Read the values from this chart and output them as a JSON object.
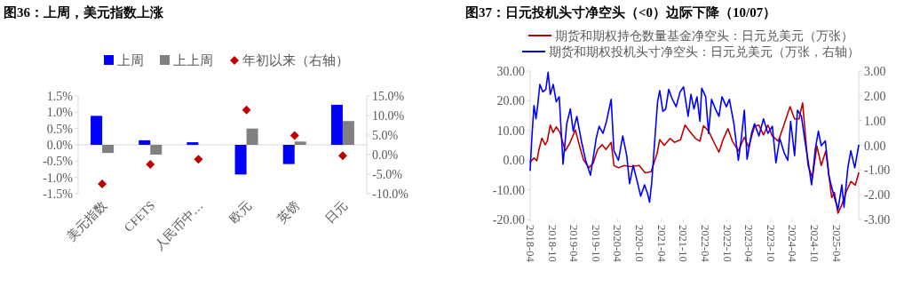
{
  "chart_data": [
    {
      "type": "bar",
      "title": "图36：上周，美元指数上涨",
      "categories": [
        "美元指数",
        "CFETS",
        "人民币中…",
        "欧元",
        "英镑",
        "日元"
      ],
      "series": [
        {
          "name": "上周",
          "color": "#0000ff",
          "values": [
            0.89,
            0.14,
            0.08,
            -0.91,
            -0.59,
            1.23
          ]
        },
        {
          "name": "上上周",
          "color": "#808080",
          "values": [
            -0.25,
            -0.3,
            null,
            0.5,
            0.1,
            0.73
          ]
        },
        {
          "name": "年初以来（右轴）",
          "type": "scatter",
          "axis": "y2",
          "marker": "diamond",
          "color": "#c00000",
          "values": [
            -7.5,
            -2.5,
            -1.2,
            11.4,
            4.9,
            -0.3
          ]
        }
      ],
      "ylim": [
        -1.5,
        1.5
      ],
      "yticks": [
        {
          "value": -1.5,
          "label": "-1.5%"
        },
        {
          "value": -1,
          "label": "-1.0%"
        },
        {
          "value": -0.5,
          "label": "-0.5%"
        },
        {
          "value": 0,
          "label": "0.0%"
        },
        {
          "value": 0.5,
          "label": "0.5%"
        },
        {
          "value": 1,
          "label": "1.0%"
        },
        {
          "value": 1.5,
          "label": "1.5%"
        }
      ],
      "y2lim": [
        -10,
        15
      ],
      "y2ticks": [
        {
          "value": -10,
          "label": "-10.0%"
        },
        {
          "value": -5,
          "label": "-5.0%"
        },
        {
          "value": 0,
          "label": "0.0%"
        },
        {
          "value": 5,
          "label": "5.0%"
        },
        {
          "value": 10,
          "label": "10.0%"
        },
        {
          "value": 15,
          "label": "15.0%"
        }
      ],
      "legend": "top"
    },
    {
      "type": "line",
      "title": "图37：日元投机头寸净空头（<0）边际下降（10/07）",
      "series": [
        {
          "name": "期货和期权持仓数量基金净空头：日元兑美元（万张）",
          "color": "#c00000",
          "x": [
            "2018-04-01",
            "2018-05-03",
            "2018-05-27",
            "2018-06-14",
            "2018-07-08",
            "2018-08-05",
            "2018-08-22",
            "2018-09-16",
            "2018-10-11",
            "2018-11-05",
            "2018-12-07",
            "2019-01-19",
            "2019-02-25",
            "2019-04-14",
            "2019-05-16",
            "2019-06-20",
            "2019-08-04",
            "2019-09-10",
            "2019-10-17",
            "2019-11-24",
            "2019-12-25",
            "2020-02-07",
            "2020-03-01",
            "2020-04-08",
            "2020-05-26",
            "2020-07-15",
            "2020-09-28",
            "2020-11-17",
            "2021-01-06",
            "2021-02-25",
            "2021-03-19",
            "2021-04-26",
            "2021-06-14",
            "2021-07-21",
            "2021-09-09",
            "2021-10-16",
            "2021-11-23",
            "2022-01-12",
            "2022-02-18",
            "2022-03-20",
            "2022-05-01",
            "2022-06-20",
            "2022-07-27",
            "2022-09-03",
            "2022-10-10",
            "2022-11-16",
            "2023-01-05",
            "2023-02-24",
            "2023-04-01",
            "2023-05-20",
            "2023-06-26",
            "2023-08-03",
            "2023-09-09",
            "2023-10-16",
            "2023-12-05",
            "2024-01-24",
            "2024-03-12",
            "2024-04-19",
            "2024-05-26",
            "2024-06-25",
            "2024-08-09",
            "2024-09-15",
            "2024-10-22",
            "2024-11-28",
            "2025-01-05",
            "2025-02-23",
            "2025-03-18",
            "2025-04-17",
            "2025-05-19",
            "2025-06-26",
            "2025-08-02",
            "2025-09-09",
            "2025-10-07"
          ],
          "values": [
            -0.6,
            0.7,
            -0.2,
            3.6,
            7.4,
            5.2,
            6.4,
            11.8,
            9.3,
            11.2,
            9.3,
            3.1,
            5.6,
            10.2,
            5.2,
            0.2,
            -2.6,
            -1,
            3.6,
            5.2,
            3.6,
            6,
            -1.8,
            -2.6,
            -1.8,
            -2.2,
            -1.8,
            -4.3,
            -3.9,
            2.3,
            6.9,
            5,
            7.3,
            6,
            6.9,
            11.8,
            9.8,
            7.3,
            6.4,
            11.6,
            9.8,
            5.6,
            2.7,
            7.3,
            10.6,
            6.4,
            3.1,
            7.7,
            4.4,
            11.4,
            11.8,
            8.5,
            11.8,
            8.1,
            6.4,
            12.2,
            18,
            13.9,
            13.9,
            19.3,
            -1.8,
            -6,
            4.8,
            -1.8,
            3.1,
            -12.6,
            -10.9,
            -17.9,
            -15,
            -10.5,
            -7.2,
            -8.4,
            -4.3
          ]
        },
        {
          "name": "期货和期权投机头寸净空头：日元兑美元（万张，右轴）",
          "color": "#0000ff",
          "axis": "y2",
          "x": [
            "2018-04-01",
            "2018-04-16",
            "2018-05-03",
            "2018-05-20",
            "2018-06-04",
            "2018-06-21",
            "2018-07-16",
            "2018-08-10",
            "2018-08-29",
            "2018-09-16",
            "2018-10-11",
            "2018-11-05",
            "2018-11-30",
            "2019-01-01",
            "2019-02-01",
            "2019-03-03",
            "2019-03-27",
            "2019-04-26",
            "2019-06-03",
            "2019-07-09",
            "2019-08-18",
            "2019-09-10",
            "2019-10-05",
            "2019-10-29",
            "2019-12-01",
            "2019-12-30",
            "2020-02-07",
            "2020-03-01",
            "2020-04-08",
            "2020-05-14",
            "2020-06-16",
            "2020-07-10",
            "2020-08-09",
            "2020-09-09",
            "2020-10-11",
            "2020-11-12",
            "2020-12-07",
            "2020-12-24",
            "2021-01-11",
            "2021-02-05",
            "2021-03-01",
            "2021-03-19",
            "2021-04-14",
            "2021-05-08",
            "2021-06-02",
            "2021-07-02",
            "2021-08-03",
            "2021-09-05",
            "2021-10-04",
            "2021-11-11",
            "2021-12-05",
            "2021-12-30",
            "2022-01-24",
            "2022-02-18",
            "2022-03-05",
            "2022-04-07",
            "2022-05-01",
            "2022-05-26",
            "2022-06-27",
            "2022-07-27",
            "2022-08-21",
            "2022-09-27",
            "2022-10-22",
            "2022-11-29",
            "2023-01-05",
            "2023-01-30",
            "2023-02-24",
            "2023-03-19",
            "2023-04-25",
            "2023-05-20",
            "2023-06-26",
            "2023-08-03",
            "2023-09-09",
            "2023-10-16",
            "2023-11-15",
            "2023-12-17",
            "2024-01-24",
            "2024-02-22",
            "2024-03-17",
            "2024-04-19",
            "2024-05-13",
            "2024-06-15",
            "2024-07-14",
            "2024-08-09",
            "2024-09-08",
            "2024-10-10",
            "2024-11-04",
            "2024-11-28",
            "2025-01-01",
            "2025-01-30",
            "2025-02-23",
            "2025-03-23",
            "2025-04-17",
            "2025-05-19",
            "2025-06-06",
            "2025-07-08",
            "2025-08-02",
            "2025-09-04",
            "2025-10-07"
          ],
          "values": [
            -1.01,
            0.38,
            1.61,
            1.07,
            1.66,
            2.46,
            2.16,
            2.26,
            2.95,
            2.06,
            2.46,
            1.76,
            1.96,
            -0.76,
            0.87,
            1.47,
            0.57,
            1.17,
            0.18,
            -0.61,
            -1.21,
            -0.51,
            0.28,
            0.77,
            0.48,
            0.97,
            1.86,
            -0.22,
            -0.61,
            0.38,
            -0.42,
            -1.55,
            -0.81,
            -1.41,
            -2.06,
            -1.6,
            -1.95,
            -2.3,
            -1.5,
            0.18,
            1.76,
            2.21,
            1.37,
            1.47,
            2.26,
            1.86,
            1.56,
            2.16,
            2.36,
            1.17,
            2.06,
            1.47,
            1.96,
            0.97,
            2.31,
            1.96,
            0.48,
            1.86,
            1.47,
            1.17,
            1.96,
            1.56,
            1.86,
            0.87,
            -0.61,
            0.28,
            1.42,
            -0.56,
            0.48,
            0.87,
            0.38,
            1.07,
            0.48,
            0.77,
            -0.71,
            0.28,
            -0.32,
            -0.61,
            0.97,
            -0.42,
            1.42,
            1.17,
            0.18,
            -0.61,
            -1.6,
            -0.12,
            0.57,
            -0.02,
            0.18,
            -1.21,
            -1.7,
            -2.2,
            -2.59,
            -1.6,
            -2.5,
            -0.91,
            -0.22,
            -0.91,
            0
          ]
        }
      ],
      "xlim": [
        "2018-04-01",
        "2025-10-07"
      ],
      "xticks": [
        "2018-04",
        "2018-10",
        "2019-04",
        "2019-10",
        "2020-04",
        "2020-10",
        "2021-04",
        "2021-10",
        "2022-04",
        "2022-10",
        "2023-04",
        "2023-10",
        "2024-04",
        "2024-10",
        "2025-04"
      ],
      "ylim": [
        -20,
        30
      ],
      "yticks": [
        {
          "value": -20,
          "label": "-20.00"
        },
        {
          "value": -10,
          "label": "-10.00"
        },
        {
          "value": 0,
          "label": "0.00"
        },
        {
          "value": 10,
          "label": "10.00"
        },
        {
          "value": 20,
          "label": "20.00"
        },
        {
          "value": 30,
          "label": "30.00"
        }
      ],
      "y2lim": [
        -3,
        3
      ],
      "y2ticks": [
        {
          "value": -3,
          "label": "-3.00"
        },
        {
          "value": -2,
          "label": "-2.00"
        },
        {
          "value": -1,
          "label": "-1.00"
        },
        {
          "value": 0,
          "label": "0.00"
        },
        {
          "value": 1,
          "label": "1.00"
        },
        {
          "value": 2,
          "label": "2.00"
        },
        {
          "value": 3,
          "label": "3.00"
        }
      ],
      "legend": "top"
    }
  ]
}
